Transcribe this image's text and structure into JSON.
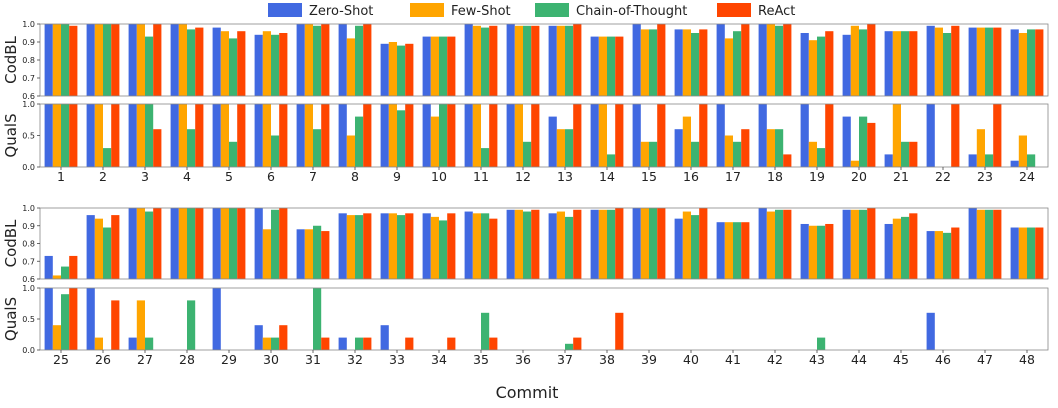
{
  "chart_data": {
    "type": "bar",
    "xlabel": "Commit",
    "legend_position": "top-center",
    "grid": false,
    "series": [
      {
        "name": "Zero-Shot",
        "color": "#4169E1"
      },
      {
        "name": "Few-Shot",
        "color": "#FFA500"
      },
      {
        "name": "Chain-of-Thought",
        "color": "#3CB371"
      },
      {
        "name": "ReAct",
        "color": "#FF4500"
      }
    ],
    "panels": [
      {
        "ylabel": "CodBL",
        "ylim": [
          0.6,
          1.0
        ],
        "yticks": [
          "0.6",
          "0.7",
          "0.8",
          "0.9",
          "1.0"
        ],
        "categories": [
          "1",
          "2",
          "3",
          "4",
          "5",
          "6",
          "7",
          "8",
          "9",
          "10",
          "11",
          "12",
          "13",
          "14",
          "15",
          "16",
          "17",
          "18",
          "19",
          "20",
          "21",
          "22",
          "23",
          "24"
        ],
        "values": [
          [
            1.0,
            1.0,
            1.0,
            0.99
          ],
          [
            1.0,
            1.0,
            1.0,
            1.0
          ],
          [
            1.0,
            1.0,
            0.93,
            1.0
          ],
          [
            1.0,
            1.0,
            0.97,
            0.98
          ],
          [
            0.98,
            0.96,
            0.92,
            0.96
          ],
          [
            0.94,
            0.96,
            0.94,
            0.95
          ],
          [
            1.0,
            1.0,
            0.99,
            1.0
          ],
          [
            1.0,
            0.92,
            0.99,
            1.0
          ],
          [
            0.89,
            0.9,
            0.88,
            0.89
          ],
          [
            0.93,
            0.93,
            0.93,
            0.93
          ],
          [
            1.0,
            0.99,
            0.98,
            0.99
          ],
          [
            1.0,
            0.99,
            0.99,
            0.99
          ],
          [
            0.99,
            0.99,
            0.99,
            1.0
          ],
          [
            0.93,
            0.93,
            0.93,
            0.93
          ],
          [
            1.0,
            0.97,
            0.97,
            1.0
          ],
          [
            0.97,
            0.97,
            0.95,
            0.97
          ],
          [
            1.0,
            0.92,
            0.96,
            1.0
          ],
          [
            1.0,
            1.0,
            0.99,
            1.0
          ],
          [
            0.95,
            0.91,
            0.93,
            0.96
          ],
          [
            0.94,
            0.99,
            0.97,
            1.0
          ],
          [
            0.96,
            0.96,
            0.96,
            0.96
          ],
          [
            0.99,
            0.98,
            0.95,
            0.99
          ],
          [
            0.98,
            0.98,
            0.98,
            0.98
          ],
          [
            0.97,
            0.95,
            0.97,
            0.97
          ]
        ]
      },
      {
        "ylabel": "QualS",
        "ylim": [
          0.0,
          1.0
        ],
        "yticks": [
          "0.0",
          "0.5",
          "1.0"
        ],
        "categories": [
          "1",
          "2",
          "3",
          "4",
          "5",
          "6",
          "7",
          "8",
          "9",
          "10",
          "11",
          "12",
          "13",
          "14",
          "15",
          "16",
          "17",
          "18",
          "19",
          "20",
          "21",
          "22",
          "23",
          "24"
        ],
        "show_xticks": true,
        "values": [
          [
            1.0,
            1.0,
            1.0,
            1.0
          ],
          [
            1.0,
            1.0,
            0.3,
            1.0
          ],
          [
            1.0,
            1.0,
            1.0,
            0.6
          ],
          [
            1.0,
            1.0,
            0.6,
            1.0
          ],
          [
            1.0,
            1.0,
            0.4,
            1.0
          ],
          [
            1.0,
            1.0,
            0.5,
            1.0
          ],
          [
            1.0,
            1.0,
            0.6,
            1.0
          ],
          [
            1.0,
            0.5,
            0.8,
            1.0
          ],
          [
            1.0,
            1.0,
            0.9,
            1.0
          ],
          [
            1.0,
            0.8,
            1.0,
            1.0
          ],
          [
            1.0,
            1.0,
            0.3,
            1.0
          ],
          [
            1.0,
            1.0,
            0.4,
            1.0
          ],
          [
            0.8,
            0.6,
            0.6,
            1.0
          ],
          [
            1.0,
            1.0,
            0.2,
            1.0
          ],
          [
            1.0,
            0.4,
            0.4,
            1.0
          ],
          [
            0.6,
            0.8,
            0.4,
            1.0
          ],
          [
            1.0,
            0.5,
            0.4,
            0.6
          ],
          [
            1.0,
            0.6,
            0.6,
            0.2
          ],
          [
            1.0,
            0.4,
            0.3,
            1.0
          ],
          [
            0.8,
            0.1,
            0.8,
            0.7
          ],
          [
            0.2,
            1.0,
            0.4,
            0.4
          ],
          [
            1.0,
            0.0,
            0.0,
            1.0
          ],
          [
            0.2,
            0.6,
            0.2,
            1.0
          ],
          [
            0.1,
            0.5,
            0.2,
            0.0
          ]
        ]
      },
      {
        "ylabel": "CodBL",
        "ylim": [
          0.6,
          1.0
        ],
        "yticks": [
          "0.6",
          "0.7",
          "0.8",
          "0.9",
          "1.0"
        ],
        "categories": [
          "25",
          "26",
          "27",
          "28",
          "29",
          "30",
          "31",
          "32",
          "33",
          "34",
          "35",
          "36",
          "37",
          "38",
          "39",
          "40",
          "41",
          "42",
          "43",
          "44",
          "45",
          "46",
          "47",
          "48"
        ],
        "values": [
          [
            0.73,
            0.62,
            0.67,
            0.73
          ],
          [
            0.96,
            0.94,
            0.89,
            0.96
          ],
          [
            1.0,
            1.0,
            0.98,
            1.0
          ],
          [
            1.0,
            1.0,
            1.0,
            1.0
          ],
          [
            1.0,
            1.0,
            1.0,
            1.0
          ],
          [
            1.0,
            0.88,
            0.99,
            1.0
          ],
          [
            0.88,
            0.88,
            0.9,
            0.87
          ],
          [
            0.97,
            0.96,
            0.96,
            0.97
          ],
          [
            0.97,
            0.97,
            0.96,
            0.97
          ],
          [
            0.97,
            0.95,
            0.93,
            0.97
          ],
          [
            0.98,
            0.97,
            0.97,
            0.94
          ],
          [
            0.99,
            0.99,
            0.98,
            0.99
          ],
          [
            0.97,
            0.98,
            0.95,
            0.99
          ],
          [
            0.99,
            0.99,
            0.99,
            1.0
          ],
          [
            1.0,
            1.0,
            1.0,
            1.0
          ],
          [
            0.94,
            0.98,
            0.96,
            1.0
          ],
          [
            0.92,
            0.92,
            0.92,
            0.92
          ],
          [
            1.0,
            0.98,
            0.99,
            0.99
          ],
          [
            0.91,
            0.9,
            0.9,
            0.91
          ],
          [
            0.99,
            0.99,
            0.99,
            1.0
          ],
          [
            0.91,
            0.94,
            0.95,
            0.97
          ],
          [
            0.87,
            0.87,
            0.86,
            0.89
          ],
          [
            1.0,
            0.99,
            0.99,
            0.99
          ],
          [
            0.89,
            0.89,
            0.89,
            0.89
          ]
        ]
      },
      {
        "ylabel": "QualS",
        "ylim": [
          0.0,
          1.0
        ],
        "yticks": [
          "0.0",
          "0.5",
          "1.0"
        ],
        "categories": [
          "25",
          "26",
          "27",
          "28",
          "29",
          "30",
          "31",
          "32",
          "33",
          "34",
          "35",
          "36",
          "37",
          "38",
          "39",
          "40",
          "41",
          "42",
          "43",
          "44",
          "45",
          "46",
          "47",
          "48"
        ],
        "show_xticks": true,
        "values": [
          [
            1.0,
            0.4,
            0.9,
            1.0
          ],
          [
            1.0,
            0.2,
            0.0,
            0.8
          ],
          [
            0.2,
            0.8,
            0.2,
            0.0
          ],
          [
            0.0,
            0.0,
            0.8,
            0.0
          ],
          [
            1.0,
            0.0,
            0.0,
            0.0
          ],
          [
            0.4,
            0.2,
            0.2,
            0.4
          ],
          [
            0.0,
            0.0,
            1.0,
            0.2
          ],
          [
            0.2,
            0.0,
            0.2,
            0.2
          ],
          [
            0.4,
            0.0,
            0.0,
            0.2
          ],
          [
            0.0,
            0.0,
            0.0,
            0.2
          ],
          [
            0.0,
            0.0,
            0.6,
            0.2
          ],
          [
            0.0,
            0.0,
            0.0,
            0.0
          ],
          [
            0.0,
            0.0,
            0.1,
            0.2
          ],
          [
            0.0,
            0.0,
            0.0,
            0.6
          ],
          [
            0.0,
            0.0,
            0.0,
            0.0
          ],
          [
            0.0,
            0.0,
            0.0,
            0.0
          ],
          [
            0.0,
            0.0,
            0.0,
            0.0
          ],
          [
            0.0,
            0.0,
            0.0,
            0.0
          ],
          [
            0.0,
            0.0,
            0.2,
            0.0
          ],
          [
            0.0,
            0.0,
            0.0,
            0.0
          ],
          [
            0.0,
            0.0,
            0.0,
            0.0
          ],
          [
            0.6,
            0.0,
            0.0,
            0.0
          ],
          [
            0.0,
            0.0,
            0.0,
            0.0
          ],
          [
            0.0,
            0.0,
            0.0,
            0.0
          ]
        ]
      }
    ]
  }
}
